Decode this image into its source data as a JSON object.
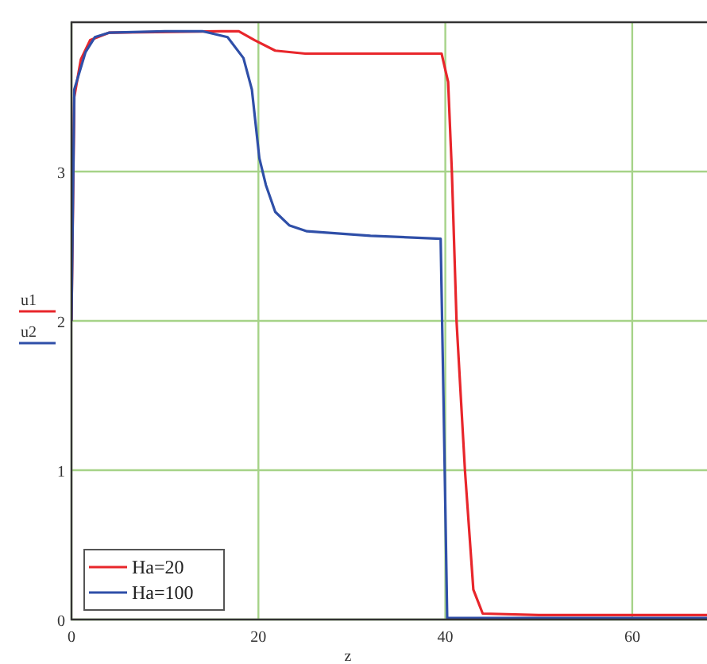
{
  "chart_data": {
    "type": "line",
    "xlabel": "z",
    "ylabel": "u1\nu2",
    "xlim": [
      0,
      68
    ],
    "ylim": [
      0,
      4
    ],
    "xticks": [
      0,
      20,
      40,
      60
    ],
    "yticks": [
      0,
      1,
      2,
      3
    ],
    "grid": true,
    "legend": "bottom left",
    "marker": "none",
    "line_style": "solid",
    "series": [
      {
        "name": "Ha=20",
        "color": "#e8262b",
        "x": [
          0,
          0.3,
          1,
          2,
          4,
          16,
          17.9,
          19.6,
          21.8,
          25,
          32,
          39.6,
          40.3,
          40.7,
          41.2,
          42.1,
          43,
          44,
          50,
          60,
          68
        ],
        "values": [
          2.0,
          3.5,
          3.75,
          3.88,
          3.93,
          3.94,
          3.94,
          3.88,
          3.81,
          3.79,
          3.79,
          3.79,
          3.6,
          3.0,
          2.0,
          1.0,
          0.2,
          0.04,
          0.03,
          0.03,
          0.03
        ]
      },
      {
        "name": "Ha=100",
        "color": "#2f4fa8",
        "x": [
          0,
          0.3,
          1.5,
          2.5,
          4,
          10,
          14,
          16.7,
          18.4,
          19.3,
          20.1,
          20.8,
          21.8,
          23.3,
          25.2,
          32,
          39.5,
          39.8,
          40.2,
          50,
          68
        ],
        "values": [
          2.0,
          3.55,
          3.8,
          3.9,
          3.93,
          3.94,
          3.94,
          3.9,
          3.76,
          3.55,
          3.09,
          2.91,
          2.73,
          2.64,
          2.6,
          2.57,
          2.55,
          1.5,
          0.01,
          0.01,
          0.01
        ]
      }
    ]
  }
}
